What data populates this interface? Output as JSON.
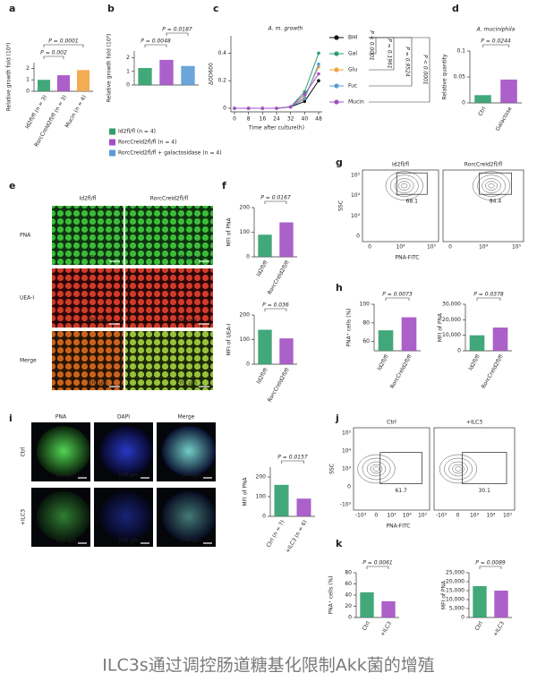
{
  "panel_labels": [
    "a",
    "b",
    "c",
    "d",
    "e",
    "f",
    "g",
    "h",
    "i",
    "j",
    "k"
  ],
  "chart_data": [
    {
      "type": "bar",
      "ylabel": "Relative growth fold (10⁸)",
      "categories": [
        "Id2fl/fl (n = 3)",
        "RorcCreId2fl/fl (n = 3)",
        "Mucin (n = 4)"
      ],
      "values": [
        1.0,
        1.4,
        1.85
      ],
      "colors": [
        "#2e9e6b",
        "#a34fc4",
        "#f2a341"
      ],
      "ylim": [
        0,
        2.5
      ],
      "yticks": [
        0,
        1,
        2
      ],
      "comparisons": [
        "P = 0.002",
        "P = 0.0001"
      ]
    },
    {
      "type": "bar",
      "ylabel": "Relative growth fold (10⁸)",
      "values": [
        1.25,
        1.85,
        1.4
      ],
      "colors": [
        "#2e9e6b",
        "#a34fc4",
        "#5b9bd5"
      ],
      "ylim": [
        0,
        2.5
      ],
      "yticks": [
        0,
        1,
        2
      ],
      "comparisons": [
        "P = 0.0048",
        "P = 0.0187"
      ],
      "legend": [
        "Id2fl/fl (n = 4)",
        "RorcCreId2fl/fl (n = 4)",
        "RorcCreId2fl/fl + galactosidase (n = 4)"
      ]
    },
    {
      "type": "line",
      "title": "A. m. growth",
      "xlabel": "Time after culture(h)",
      "ylabel": "ΔOD600",
      "x": [
        0,
        8,
        16,
        24,
        32,
        40,
        48
      ],
      "xlim": [
        0,
        48
      ],
      "xticks": [
        0,
        8,
        16,
        24,
        32,
        40,
        48
      ],
      "ylim": [
        0,
        0.5
      ],
      "yticks": [
        0,
        0.2,
        0.4
      ],
      "series": [
        {
          "name": "BHI",
          "color": "#111111",
          "values": [
            0,
            0,
            0,
            0,
            0.01,
            0.05,
            0.2
          ]
        },
        {
          "name": "Gal",
          "color": "#2e9e6b",
          "values": [
            0,
            0,
            0,
            0,
            0.01,
            0.12,
            0.4
          ]
        },
        {
          "name": "Glu",
          "color": "#f2a341",
          "values": [
            0,
            0,
            0,
            0,
            0.01,
            0.08,
            0.3
          ]
        },
        {
          "name": "Fuc",
          "color": "#5b9bd5",
          "values": [
            0,
            0,
            0,
            0,
            0.01,
            0.07,
            0.32
          ]
        },
        {
          "name": "Mucin",
          "color": "#a34fc4",
          "values": [
            0,
            0,
            0,
            0,
            0.01,
            0.1,
            0.25
          ]
        }
      ],
      "comparisons": [
        "P < 0.0001",
        "P = 0.1961",
        "P = 0.9524",
        "P < 0.0001"
      ]
    },
    {
      "type": "bar",
      "title": "A. muciniphila",
      "ylabel": "Relative quantity",
      "categories": [
        "Ctrl",
        "Galactose"
      ],
      "values": [
        0.015,
        0.045
      ],
      "colors": [
        "#2e9e6b",
        "#a34fc4"
      ],
      "ylim": [
        0,
        0.1
      ],
      "yticks": [
        0,
        0.05,
        0.1
      ],
      "comparisons": [
        "P = 0.0244"
      ]
    },
    {
      "type": "bar",
      "ylabel": "MFI of PNA",
      "categories": [
        "Id2fl/fl",
        "RorcCreId2fl/fl"
      ],
      "values": [
        90,
        140
      ],
      "colors": [
        "#2e9e6b",
        "#a34fc4"
      ],
      "ylim": [
        0,
        200
      ],
      "yticks": [
        0,
        100,
        200
      ],
      "comparisons": [
        "P = 0.0167"
      ]
    },
    {
      "type": "bar",
      "ylabel": "MFI of UEA-I",
      "categories": [
        "Id2fl/fl",
        "RorcCreId2fl/fl"
      ],
      "values": [
        140,
        105
      ],
      "colors": [
        "#2e9e6b",
        "#a34fc4"
      ],
      "ylim": [
        0,
        200
      ],
      "yticks": [
        0,
        100,
        200
      ],
      "comparisons": [
        "P = 0.036"
      ]
    },
    {
      "type": "bar",
      "ylabel": "PNA⁺ cells (%)",
      "categories": [
        "Id2fl/fl",
        "RorcCreId2fl/fl"
      ],
      "values": [
        72,
        86
      ],
      "colors": [
        "#2e9e6b",
        "#a34fc4"
      ],
      "ylim": [
        50,
        100
      ],
      "yticks": [
        60,
        80,
        100
      ],
      "comparisons": [
        "P = 0.0073"
      ]
    },
    {
      "type": "bar",
      "ylabel": "MFI of PNA",
      "categories": [
        "Id2fl/fl",
        "RorcCreId2fl/fl"
      ],
      "values": [
        10000,
        15000
      ],
      "colors": [
        "#2e9e6b",
        "#a34fc4"
      ],
      "ylim": [
        0,
        30000
      ],
      "yticks": [
        0,
        {
          "value": 10000,
          "label": "10,000"
        },
        {
          "value": 20000,
          "label": "20,000"
        },
        {
          "value": 30000,
          "label": "30,000"
        }
      ],
      "comparisons": [
        "P = 0.0378"
      ]
    },
    {
      "type": "bar",
      "ylabel": "MFI of PNA",
      "categories": [
        "Ctrl (n = 7)",
        "+ILC3 (n = 6)"
      ],
      "values": [
        160,
        90
      ],
      "colors": [
        "#2e9e6b",
        "#a34fc4"
      ],
      "ylim": [
        0,
        250
      ],
      "yticks": [
        0,
        100,
        200
      ],
      "comparisons": [
        "P = 0.0157"
      ]
    },
    {
      "type": "bar",
      "ylabel": "PNA⁺ cells (%)",
      "categories": [
        "Ctrl",
        "+ILC3"
      ],
      "values": [
        45,
        29
      ],
      "colors": [
        "#2e9e6b",
        "#a34fc4"
      ],
      "ylim": [
        0,
        80
      ],
      "yticks": [
        0,
        20,
        40,
        60,
        80
      ],
      "comparisons": [
        "P = 0.0061"
      ]
    },
    {
      "type": "bar",
      "ylabel": "MFI of PNA",
      "categories": [
        "Ctrl",
        "+ILC3"
      ],
      "values": [
        17500,
        15000
      ],
      "colors": [
        "#2e9e6b",
        "#a34fc4"
      ],
      "ylim": [
        0,
        25000
      ],
      "yticks": [
        0,
        {
          "value": 5000,
          "label": "5,000"
        },
        {
          "value": 10000,
          "label": "10,000"
        },
        {
          "value": 15000,
          "label": "15,000"
        },
        {
          "value": 20000,
          "label": "20,000"
        },
        {
          "value": 25000,
          "label": "25,000"
        }
      ],
      "comparisons": [
        "P = 0.0089"
      ]
    }
  ],
  "panel_e": {
    "columns": [
      "Id2fl/fl",
      "RorcCreId2fl/fl"
    ],
    "rows": [
      "PNA",
      "UEA-I",
      "Merge"
    ],
    "scale_bar": "200 μm"
  },
  "panel_g": {
    "ylabel": "SSC",
    "xlabel": "PNA-FITC",
    "plots": [
      {
        "title": "Id2fl/fl",
        "gate": 68.1
      },
      {
        "title": "RorcCreId2fl/fl",
        "gate": 84.4
      }
    ],
    "xticks": [
      "0",
      "10⁴",
      "10⁵"
    ],
    "yticks": [
      "10⁵",
      "10⁴",
      "10³",
      "0"
    ]
  },
  "panel_i": {
    "columns": [
      "PNA",
      "DAPI",
      "Merge"
    ],
    "rows": [
      "Ctrl",
      "+ILC3"
    ],
    "scale_bar": "100 μm"
  },
  "panel_j": {
    "ylabel": "SSC",
    "xlabel": "PNA-FITC",
    "plots": [
      {
        "title": "Ctrl",
        "gate": 61.7
      },
      {
        "title": "+ILC3",
        "gate": 30.1
      }
    ],
    "xticks": [
      "-10³",
      "0",
      "10³",
      "10⁴",
      "10⁵"
    ],
    "yticks": [
      "10⁵",
      "10⁴",
      "10³",
      "0",
      "-10³"
    ]
  },
  "caption": "ILC3s通过调控肠道糖基化限制Akk菌的增殖"
}
